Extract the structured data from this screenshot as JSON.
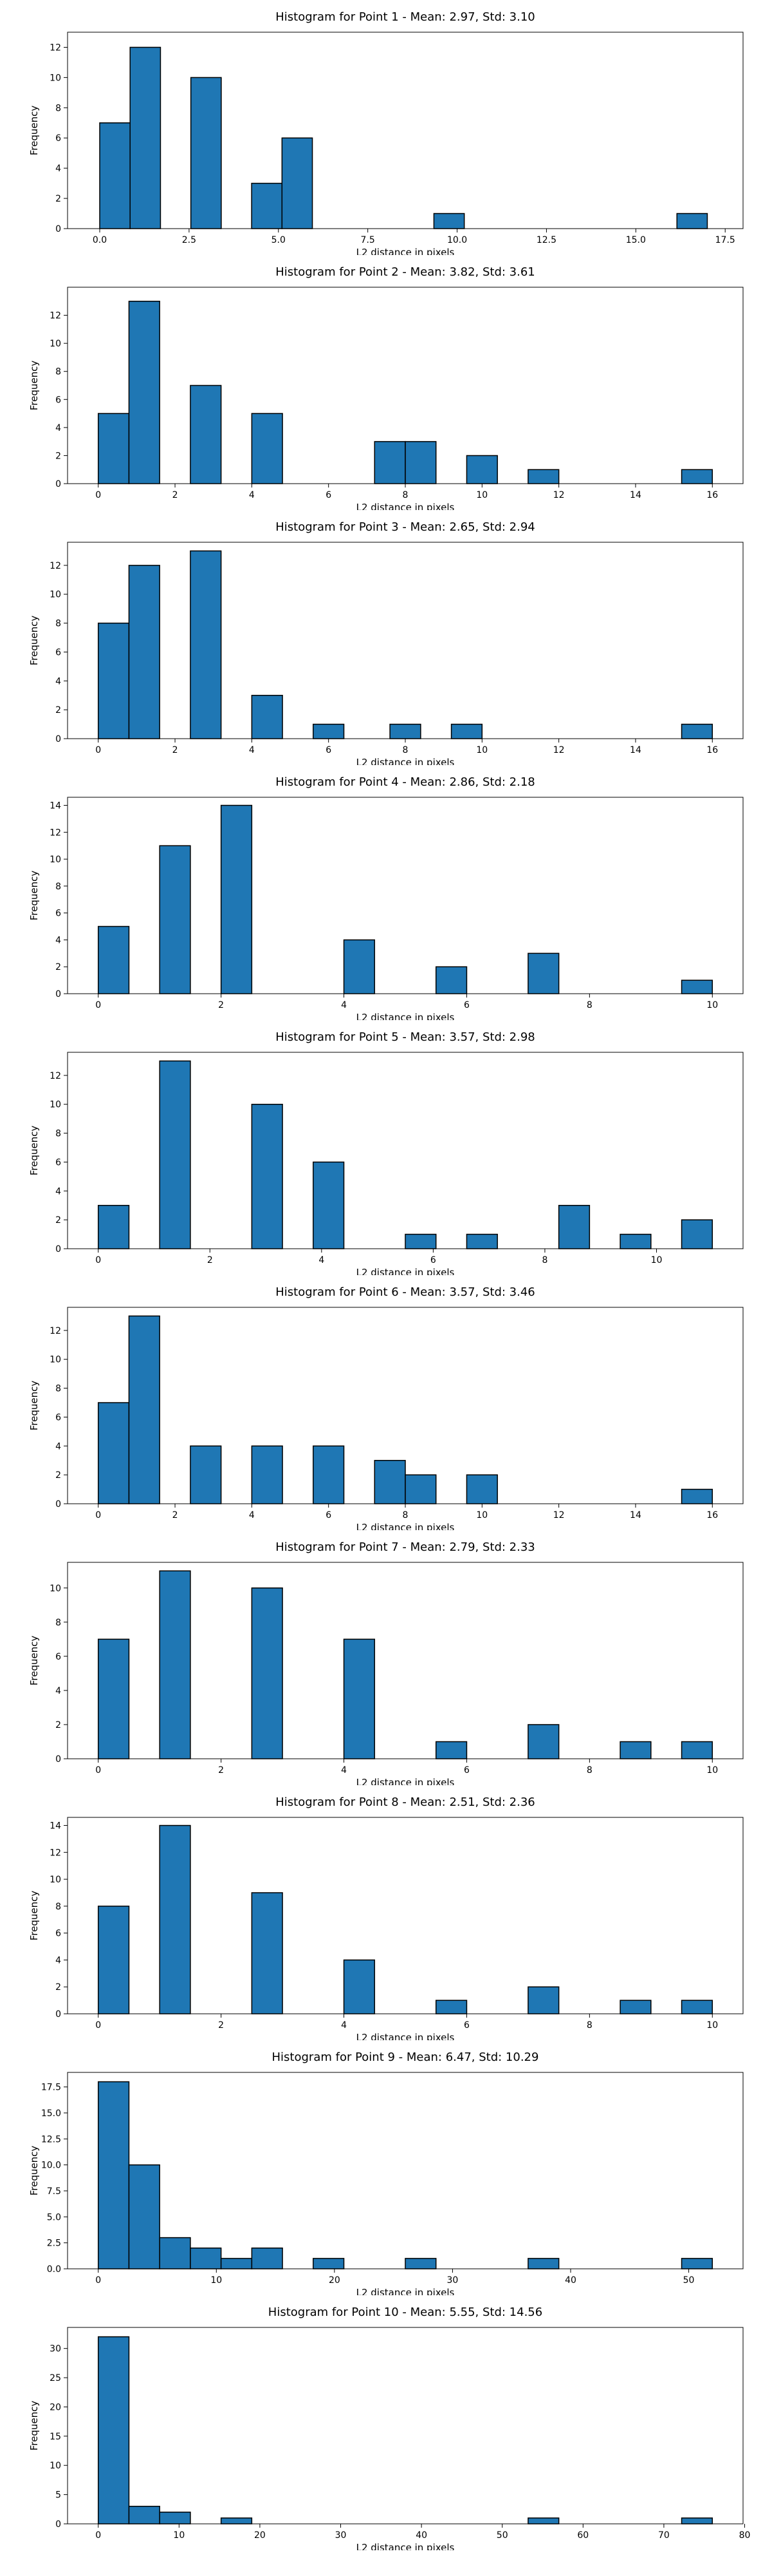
{
  "style": {
    "bar_color": "#1f77b4",
    "edge_color": "#000000"
  },
  "chart_data": [
    {
      "type": "bar",
      "title": "Histogram for Point 1 - Mean: 2.97, Std: 3.10",
      "xlabel": "L2 distance in pixels",
      "ylabel": "Frequency",
      "xlim": [
        -0.9,
        18.0
      ],
      "ylim": [
        0,
        13
      ],
      "xticks": [
        0.0,
        2.5,
        5.0,
        7.5,
        10.0,
        12.5,
        15.0,
        17.5
      ],
      "xtick_labels": [
        "0.0",
        "2.5",
        "5.0",
        "7.5",
        "10.0",
        "12.5",
        "15.0",
        "17.5"
      ],
      "yticks": [
        0,
        2,
        4,
        6,
        8,
        10,
        12
      ],
      "ytick_labels": [
        "0",
        "2",
        "4",
        "6",
        "8",
        "10",
        "12"
      ],
      "bins": [
        [
          0.0,
          0.85,
          7
        ],
        [
          0.85,
          1.7,
          12
        ],
        [
          2.55,
          3.4,
          10
        ],
        [
          4.25,
          5.1,
          3
        ],
        [
          5.1,
          5.95,
          6
        ],
        [
          9.35,
          10.2,
          1
        ],
        [
          16.15,
          17.0,
          1
        ]
      ]
    },
    {
      "type": "bar",
      "title": "Histogram for Point 2 - Mean: 3.82, Std: 3.61",
      "xlabel": "L2 distance in pixels",
      "ylabel": "Frequency",
      "xlim": [
        -0.8,
        16.8
      ],
      "ylim": [
        0,
        14
      ],
      "xticks": [
        0,
        2,
        4,
        6,
        8,
        10,
        12,
        14,
        16
      ],
      "xtick_labels": [
        "0",
        "2",
        "4",
        "6",
        "8",
        "10",
        "12",
        "14",
        "16"
      ],
      "yticks": [
        0,
        2,
        4,
        6,
        8,
        10,
        12
      ],
      "ytick_labels": [
        "0",
        "2",
        "4",
        "6",
        "8",
        "10",
        "12"
      ],
      "bins": [
        [
          0.0,
          0.8,
          5
        ],
        [
          0.8,
          1.6,
          13
        ],
        [
          2.4,
          3.2,
          7
        ],
        [
          4.0,
          4.8,
          5
        ],
        [
          7.2,
          8.0,
          3
        ],
        [
          8.0,
          8.8,
          3
        ],
        [
          9.6,
          10.4,
          2
        ],
        [
          11.2,
          12.0,
          1
        ],
        [
          15.2,
          16.0,
          1
        ]
      ]
    },
    {
      "type": "bar",
      "title": "Histogram for Point 3 - Mean: 2.65, Std: 2.94",
      "xlabel": "L2 distance in pixels",
      "ylabel": "Frequency",
      "xlim": [
        -0.8,
        16.8
      ],
      "ylim": [
        0,
        13.6
      ],
      "xticks": [
        0,
        2,
        4,
        6,
        8,
        10,
        12,
        14,
        16
      ],
      "xtick_labels": [
        "0",
        "2",
        "4",
        "6",
        "8",
        "10",
        "12",
        "14",
        "16"
      ],
      "yticks": [
        0,
        2,
        4,
        6,
        8,
        10,
        12
      ],
      "ytick_labels": [
        "0",
        "2",
        "4",
        "6",
        "8",
        "10",
        "12"
      ],
      "bins": [
        [
          0.0,
          0.8,
          8
        ],
        [
          0.8,
          1.6,
          12
        ],
        [
          2.4,
          3.2,
          13
        ],
        [
          4.0,
          4.8,
          3
        ],
        [
          5.6,
          6.4,
          1
        ],
        [
          7.6,
          8.4,
          1
        ],
        [
          9.2,
          10.0,
          1
        ],
        [
          15.2,
          16.0,
          1
        ]
      ]
    },
    {
      "type": "bar",
      "title": "Histogram for Point 4 - Mean: 2.86, Std: 2.18",
      "xlabel": "L2 distance in pixels",
      "ylabel": "Frequency",
      "xlim": [
        -0.5,
        10.5
      ],
      "ylim": [
        0,
        14.6
      ],
      "xticks": [
        0,
        2,
        4,
        6,
        8,
        10
      ],
      "xtick_labels": [
        "0",
        "2",
        "4",
        "6",
        "8",
        "10"
      ],
      "yticks": [
        0,
        2,
        4,
        6,
        8,
        10,
        12,
        14
      ],
      "ytick_labels": [
        "0",
        "2",
        "4",
        "6",
        "8",
        "10",
        "12",
        "14"
      ],
      "bins": [
        [
          0.0,
          0.5,
          5
        ],
        [
          1.0,
          1.5,
          11
        ],
        [
          2.0,
          2.5,
          14
        ],
        [
          4.0,
          4.5,
          4
        ],
        [
          5.5,
          6.0,
          2
        ],
        [
          7.0,
          7.5,
          3
        ],
        [
          9.5,
          10.0,
          1
        ]
      ]
    },
    {
      "type": "bar",
      "title": "Histogram for Point 5 - Mean: 3.57, Std: 2.98",
      "xlabel": "L2 distance in pixels",
      "ylabel": "Frequency",
      "xlim": [
        -0.55,
        11.55
      ],
      "ylim": [
        0,
        13.6
      ],
      "xticks": [
        0,
        2,
        4,
        6,
        8,
        10
      ],
      "xtick_labels": [
        "0",
        "2",
        "4",
        "6",
        "8",
        "10"
      ],
      "yticks": [
        0,
        2,
        4,
        6,
        8,
        10,
        12
      ],
      "ytick_labels": [
        "0",
        "2",
        "4",
        "6",
        "8",
        "10",
        "12"
      ],
      "bins": [
        [
          0.0,
          0.55,
          3
        ],
        [
          1.1,
          1.65,
          13
        ],
        [
          2.75,
          3.3,
          10
        ],
        [
          3.85,
          4.4,
          6
        ],
        [
          5.5,
          6.05,
          1
        ],
        [
          6.6,
          7.15,
          1
        ],
        [
          8.25,
          8.8,
          3
        ],
        [
          9.35,
          9.9,
          1
        ],
        [
          10.45,
          11.0,
          2
        ]
      ]
    },
    {
      "type": "bar",
      "title": "Histogram for Point 6 - Mean: 3.57, Std: 3.46",
      "xlabel": "L2 distance in pixels",
      "ylabel": "Frequency",
      "xlim": [
        -0.8,
        16.8
      ],
      "ylim": [
        0,
        13.6
      ],
      "xticks": [
        0,
        2,
        4,
        6,
        8,
        10,
        12,
        14,
        16
      ],
      "xtick_labels": [
        "0",
        "2",
        "4",
        "6",
        "8",
        "10",
        "12",
        "14",
        "16"
      ],
      "yticks": [
        0,
        2,
        4,
        6,
        8,
        10,
        12
      ],
      "ytick_labels": [
        "0",
        "2",
        "4",
        "6",
        "8",
        "10",
        "12"
      ],
      "bins": [
        [
          0.0,
          0.8,
          7
        ],
        [
          0.8,
          1.6,
          13
        ],
        [
          2.4,
          3.2,
          4
        ],
        [
          4.0,
          4.8,
          4
        ],
        [
          5.6,
          6.4,
          4
        ],
        [
          7.2,
          8.0,
          3
        ],
        [
          8.0,
          8.8,
          2
        ],
        [
          9.6,
          10.4,
          2
        ],
        [
          15.2,
          16.0,
          1
        ]
      ]
    },
    {
      "type": "bar",
      "title": "Histogram for Point 7 - Mean: 2.79, Std: 2.33",
      "xlabel": "L2 distance in pixels",
      "ylabel": "Frequency",
      "xlim": [
        -0.5,
        10.5
      ],
      "ylim": [
        0,
        11.5
      ],
      "xticks": [
        0,
        2,
        4,
        6,
        8,
        10
      ],
      "xtick_labels": [
        "0",
        "2",
        "4",
        "6",
        "8",
        "10"
      ],
      "yticks": [
        0,
        2,
        4,
        6,
        8,
        10
      ],
      "ytick_labels": [
        "0",
        "2",
        "4",
        "6",
        "8",
        "10"
      ],
      "bins": [
        [
          0.0,
          0.5,
          7
        ],
        [
          1.0,
          1.5,
          11
        ],
        [
          2.5,
          3.0,
          10
        ],
        [
          4.0,
          4.5,
          7
        ],
        [
          5.5,
          6.0,
          1
        ],
        [
          7.0,
          7.5,
          2
        ],
        [
          8.5,
          9.0,
          1
        ],
        [
          9.5,
          10.0,
          1
        ]
      ]
    },
    {
      "type": "bar",
      "title": "Histogram for Point 8 - Mean: 2.51, Std: 2.36",
      "xlabel": "L2 distance in pixels",
      "ylabel": "Frequency",
      "xlim": [
        -0.5,
        10.5
      ],
      "ylim": [
        0,
        14.6
      ],
      "xticks": [
        0,
        2,
        4,
        6,
        8,
        10
      ],
      "xtick_labels": [
        "0",
        "2",
        "4",
        "6",
        "8",
        "10"
      ],
      "yticks": [
        0,
        2,
        4,
        6,
        8,
        10,
        12,
        14
      ],
      "ytick_labels": [
        "0",
        "2",
        "4",
        "6",
        "8",
        "10",
        "12",
        "14"
      ],
      "bins": [
        [
          0.0,
          0.5,
          8
        ],
        [
          1.0,
          1.5,
          14
        ],
        [
          2.5,
          3.0,
          9
        ],
        [
          4.0,
          4.5,
          4
        ],
        [
          5.5,
          6.0,
          1
        ],
        [
          7.0,
          7.5,
          2
        ],
        [
          8.5,
          9.0,
          1
        ],
        [
          9.5,
          10.0,
          1
        ]
      ]
    },
    {
      "type": "bar",
      "title": "Histogram for Point 9 - Mean: 6.47, Std: 10.29",
      "xlabel": "L2 distance in pixels",
      "ylabel": "Frequency",
      "xlim": [
        -2.6,
        54.6
      ],
      "ylim": [
        0,
        18.9
      ],
      "xticks": [
        0,
        10,
        20,
        30,
        40,
        50
      ],
      "xtick_labels": [
        "0",
        "10",
        "20",
        "30",
        "40",
        "50"
      ],
      "yticks": [
        0.0,
        2.5,
        5.0,
        7.5,
        10.0,
        12.5,
        15.0,
        17.5
      ],
      "ytick_labels": [
        "0.0",
        "2.5",
        "5.0",
        "7.5",
        "10.0",
        "12.5",
        "15.0",
        "17.5"
      ],
      "bins": [
        [
          0.0,
          2.6,
          18
        ],
        [
          2.6,
          5.2,
          10
        ],
        [
          5.2,
          7.8,
          3
        ],
        [
          7.8,
          10.4,
          2
        ],
        [
          10.4,
          13.0,
          1
        ],
        [
          13.0,
          15.6,
          2
        ],
        [
          18.2,
          20.8,
          1
        ],
        [
          26.0,
          28.6,
          1
        ],
        [
          36.4,
          39.0,
          1
        ],
        [
          49.4,
          52.0,
          1
        ]
      ]
    },
    {
      "type": "bar",
      "title": "Histogram for Point 10 - Mean: 5.55, Std: 14.56",
      "xlabel": "L2 distance in pixels",
      "ylabel": "Frequency",
      "xlim": [
        -3.8,
        79.8
      ],
      "ylim": [
        0,
        33.6
      ],
      "xticks": [
        0,
        10,
        20,
        30,
        40,
        50,
        60,
        70,
        80
      ],
      "xtick_labels": [
        "0",
        "10",
        "20",
        "30",
        "40",
        "50",
        "60",
        "70",
        "80"
      ],
      "yticks": [
        0,
        5,
        10,
        15,
        20,
        25,
        30
      ],
      "ytick_labels": [
        "0",
        "5",
        "10",
        "15",
        "20",
        "25",
        "30"
      ],
      "bins": [
        [
          0.0,
          3.8,
          32
        ],
        [
          3.8,
          7.6,
          3
        ],
        [
          7.6,
          11.4,
          2
        ],
        [
          15.2,
          19.0,
          1
        ],
        [
          53.2,
          57.0,
          1
        ],
        [
          72.2,
          76.0,
          1
        ]
      ]
    }
  ]
}
